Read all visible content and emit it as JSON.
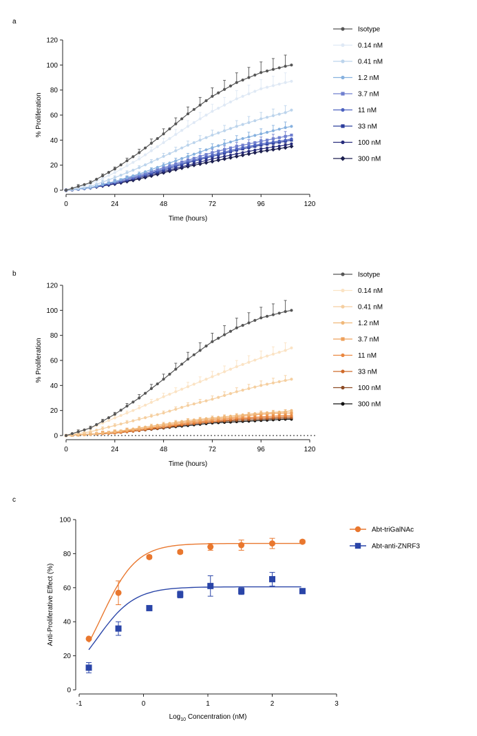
{
  "chart_data": [
    {
      "panel": "a",
      "type": "line",
      "xlabel": "Time (hours)",
      "ylabel": "% Proliferation",
      "xlim": [
        0,
        120
      ],
      "ylim": [
        0,
        120
      ],
      "xticks": [
        0,
        24,
        48,
        72,
        96,
        120
      ],
      "yticks": [
        0,
        20,
        40,
        60,
        80,
        100,
        120
      ],
      "grid": false,
      "legend_position": "right",
      "x": [
        0,
        12,
        24,
        36,
        48,
        60,
        72,
        84,
        96,
        108,
        111
      ],
      "series": [
        {
          "name": "Isotype",
          "color": "#555555",
          "marker": "circle",
          "values": [
            0,
            6,
            17,
            30,
            45,
            61,
            75,
            86,
            94,
            99,
            100
          ]
        },
        {
          "name": "0.14 nM",
          "color": "#dfe9f5",
          "marker": "circle",
          "values": [
            0,
            5,
            14,
            25,
            38,
            51,
            63,
            73,
            81,
            86,
            87
          ]
        },
        {
          "name": "0.41 nM",
          "color": "#bcd4ec",
          "marker": "circle",
          "values": [
            0,
            3,
            10,
            18,
            27,
            36,
            44,
            51,
            57,
            62,
            64
          ]
        },
        {
          "name": "1.2 nM",
          "color": "#86b1df",
          "marker": "circle",
          "values": [
            0,
            2,
            7,
            13,
            20,
            27,
            34,
            40,
            45,
            50,
            51
          ]
        },
        {
          "name": "3.7 nM",
          "color": "#6f7fcf",
          "marker": "square",
          "values": [
            0,
            2,
            7,
            12,
            18,
            24,
            30,
            35,
            39,
            43,
            44
          ]
        },
        {
          "name": "11 nM",
          "color": "#4c62c0",
          "marker": "circle",
          "values": [
            0,
            2,
            6,
            11,
            17,
            23,
            28,
            33,
            37,
            40,
            41
          ]
        },
        {
          "name": "33 nM",
          "color": "#2b3d9c",
          "marker": "square",
          "values": [
            0,
            2,
            6,
            11,
            16,
            22,
            27,
            32,
            36,
            39,
            40
          ]
        },
        {
          "name": "100 nM",
          "color": "#272c7c",
          "marker": "circle",
          "values": [
            0,
            2,
            5,
            10,
            15,
            20,
            25,
            29,
            33,
            36,
            37
          ]
        },
        {
          "name": "300 nM",
          "color": "#1c1f4f",
          "marker": "diamond",
          "values": [
            0,
            2,
            5,
            9,
            14,
            19,
            23,
            27,
            31,
            34,
            35
          ]
        }
      ]
    },
    {
      "panel": "b",
      "type": "line",
      "xlabel": "Time (hours)",
      "ylabel": "% Proliferation",
      "xlim": [
        0,
        120
      ],
      "ylim": [
        0,
        120
      ],
      "xticks": [
        0,
        24,
        48,
        72,
        96,
        120
      ],
      "yticks": [
        0,
        20,
        40,
        60,
        80,
        100,
        120
      ],
      "grid": false,
      "zero_reference_line": "dotted",
      "legend_position": "right",
      "x": [
        0,
        12,
        24,
        36,
        48,
        60,
        72,
        84,
        96,
        108,
        111
      ],
      "series": [
        {
          "name": "Isotype",
          "color": "#555555",
          "marker": "circle",
          "values": [
            0,
            6,
            17,
            30,
            45,
            61,
            75,
            86,
            94,
            99,
            100
          ]
        },
        {
          "name": "0.14 nM",
          "color": "#fbe3c4",
          "marker": "circle",
          "values": [
            0,
            6,
            14,
            22,
            31,
            39,
            47,
            55,
            62,
            68,
            70
          ]
        },
        {
          "name": "0.41 nM",
          "color": "#f5cfa0",
          "marker": "circle",
          "values": [
            0,
            3,
            8,
            13,
            18,
            24,
            29,
            35,
            40,
            44,
            45
          ]
        },
        {
          "name": "1.2 nM",
          "color": "#f0b87a",
          "marker": "circle",
          "values": [
            0,
            1,
            3,
            6,
            9,
            12,
            14,
            16,
            18,
            19,
            20
          ]
        },
        {
          "name": "3.7 nM",
          "color": "#eea05a",
          "marker": "square",
          "values": [
            0,
            1,
            3,
            5,
            8,
            11,
            13,
            15,
            17,
            18,
            18
          ]
        },
        {
          "name": "11 nM",
          "color": "#ea8740",
          "marker": "circle",
          "values": [
            0,
            1,
            2,
            5,
            7,
            10,
            12,
            14,
            15,
            16,
            16
          ]
        },
        {
          "name": "33 nM",
          "color": "#cf6a2a",
          "marker": "circle",
          "values": [
            0,
            1,
            2,
            4,
            7,
            9,
            11,
            13,
            14,
            15,
            15
          ]
        },
        {
          "name": "100 nM",
          "color": "#8c4b24",
          "marker": "circle",
          "values": [
            0,
            1,
            2,
            4,
            6,
            9,
            11,
            12,
            13,
            14,
            14
          ]
        },
        {
          "name": "300 nM",
          "color": "#111111",
          "marker": "circle",
          "values": [
            0,
            1,
            2,
            4,
            6,
            8,
            10,
            11,
            12,
            13,
            13
          ]
        }
      ]
    },
    {
      "panel": "c",
      "type": "scatter",
      "xlabel": "Log10 Concentration (nM)",
      "ylabel": "Anti-Proliferative Effect (%)",
      "xlim": [
        -1,
        3
      ],
      "ylim": [
        0,
        100
      ],
      "xticks": [
        -1,
        0,
        1,
        2,
        3
      ],
      "yticks": [
        0,
        20,
        40,
        60,
        80,
        100
      ],
      "grid": false,
      "legend_position": "top-right",
      "series": [
        {
          "name": "Abt-triGalNAc",
          "color": "#e9772e",
          "marker": "circle",
          "x": [
            -0.85,
            -0.39,
            0.09,
            0.57,
            1.04,
            1.52,
            2.0,
            2.47
          ],
          "values": [
            30,
            57,
            78,
            81,
            84,
            85,
            86,
            87
          ],
          "errors": [
            0,
            7,
            1,
            1,
            2,
            3,
            3,
            1
          ],
          "fit": {
            "bottom": 0,
            "top": 86,
            "log_ec50": -0.65,
            "hill": 1.6
          }
        },
        {
          "name": "Abt-anti-ZNRF3",
          "color": "#2a45a8",
          "marker": "square",
          "x": [
            -0.85,
            -0.39,
            0.09,
            0.57,
            1.04,
            1.52,
            2.0,
            2.47
          ],
          "values": [
            13,
            36,
            48,
            56,
            61,
            58,
            65,
            58
          ],
          "errors": [
            3,
            4,
            1,
            2,
            6,
            2,
            4,
            1
          ],
          "fit": {
            "bottom": 0,
            "top": 60.5,
            "log_ec50": -0.72,
            "hill": 1.5
          }
        }
      ]
    }
  ]
}
